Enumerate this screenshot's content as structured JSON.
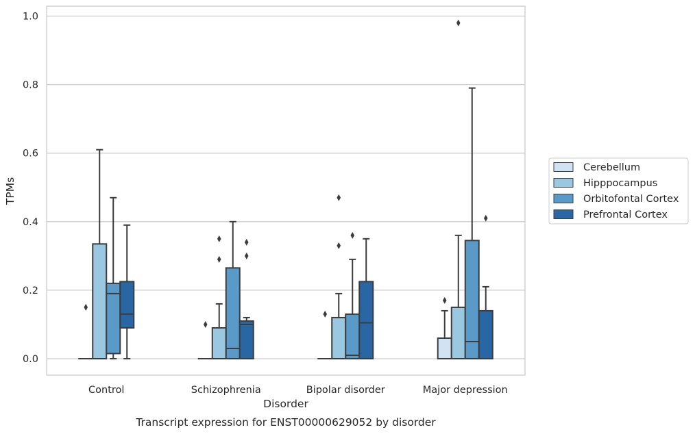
{
  "chart_data": {
    "type": "boxplot",
    "caption": "Transcript expression for ENST00000629052 by disorder",
    "xlabel": "Disorder",
    "ylabel": "TPMs",
    "ylim": [
      -0.045,
      1.03
    ],
    "yticks": [
      0.0,
      0.2,
      0.4,
      0.6,
      0.8,
      1.0
    ],
    "ytick_labels": [
      "0.0",
      "0.2",
      "0.4",
      "0.6",
      "0.8",
      "1.0"
    ],
    "grid": true,
    "legend_position": "right",
    "categories": [
      "Control",
      "Schizophrenia",
      "Bipolar disorder",
      "Major depression"
    ],
    "series": [
      {
        "name": "Cerebellum",
        "color": "#d1e2f2",
        "boxes": [
          {
            "q1": 0.0,
            "median": 0.0,
            "q3": 0.0,
            "whislo": 0.0,
            "whishi": 0.0,
            "fliers": [
              0.15
            ]
          },
          {
            "q1": 0.0,
            "median": 0.0,
            "q3": 0.0,
            "whislo": 0.0,
            "whishi": 0.0,
            "fliers": [
              0.1
            ]
          },
          {
            "q1": 0.0,
            "median": 0.0,
            "q3": 0.0,
            "whislo": 0.0,
            "whishi": 0.0,
            "fliers": [
              0.13
            ]
          },
          {
            "q1": 0.0,
            "median": 0.0,
            "q3": 0.06,
            "whislo": 0.0,
            "whishi": 0.14,
            "fliers": [
              0.17
            ]
          }
        ]
      },
      {
        "name": "Hipppocampus",
        "color": "#9ac8e0",
        "boxes": [
          {
            "q1": 0.0,
            "median": 0.0,
            "q3": 0.335,
            "whislo": 0.0,
            "whishi": 0.61,
            "fliers": []
          },
          {
            "q1": 0.0,
            "median": 0.0,
            "q3": 0.09,
            "whislo": 0.0,
            "whishi": 0.16,
            "fliers": [
              0.29,
              0.35
            ]
          },
          {
            "q1": 0.0,
            "median": 0.0,
            "q3": 0.12,
            "whislo": 0.0,
            "whishi": 0.19,
            "fliers": [
              0.33,
              0.47
            ]
          },
          {
            "q1": 0.0,
            "median": 0.0,
            "q3": 0.15,
            "whislo": 0.0,
            "whishi": 0.36,
            "fliers": [
              0.98
            ]
          }
        ]
      },
      {
        "name": "Orbitofontal Cortex",
        "color": "#5a9ac8",
        "boxes": [
          {
            "q1": 0.015,
            "median": 0.19,
            "q3": 0.22,
            "whislo": 0.0,
            "whishi": 0.47,
            "fliers": []
          },
          {
            "q1": 0.0,
            "median": 0.03,
            "q3": 0.265,
            "whislo": 0.0,
            "whishi": 0.4,
            "fliers": []
          },
          {
            "q1": 0.0,
            "median": 0.01,
            "q3": 0.13,
            "whislo": 0.0,
            "whishi": 0.29,
            "fliers": [
              0.36
            ]
          },
          {
            "q1": 0.0,
            "median": 0.05,
            "q3": 0.345,
            "whislo": 0.0,
            "whishi": 0.79,
            "fliers": []
          }
        ]
      },
      {
        "name": "Prefrontal Cortex",
        "color": "#2866a4",
        "boxes": [
          {
            "q1": 0.09,
            "median": 0.13,
            "q3": 0.225,
            "whislo": 0.0,
            "whishi": 0.39,
            "fliers": []
          },
          {
            "q1": 0.0,
            "median": 0.1,
            "q3": 0.11,
            "whislo": 0.0,
            "whishi": 0.12,
            "fliers": [
              0.3,
              0.34
            ]
          },
          {
            "q1": 0.0,
            "median": 0.105,
            "q3": 0.225,
            "whislo": 0.0,
            "whishi": 0.35,
            "fliers": []
          },
          {
            "q1": 0.0,
            "median": 0.0,
            "q3": 0.14,
            "whislo": 0.0,
            "whishi": 0.21,
            "fliers": [
              0.41
            ]
          }
        ]
      }
    ]
  }
}
